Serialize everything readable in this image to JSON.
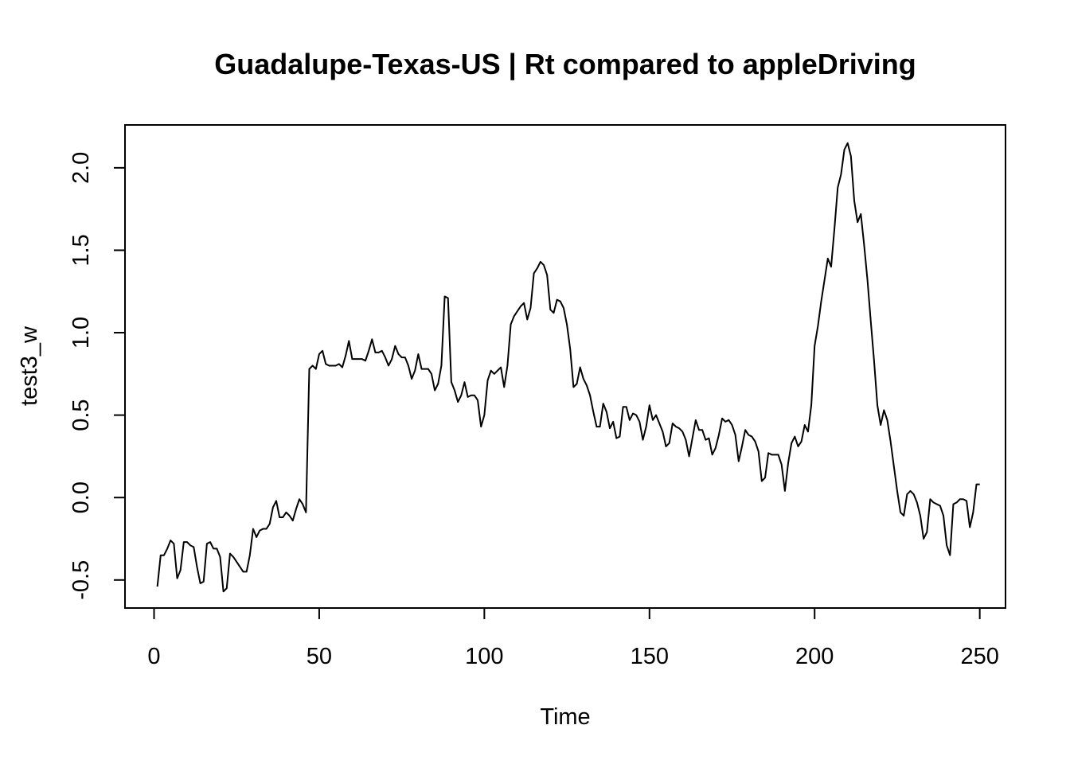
{
  "chart_data": {
    "type": "line",
    "title": "Guadalupe-Texas-US | Rt compared to appleDriving",
    "xlabel": "Time",
    "ylabel": "test3_w",
    "xlim": [
      -8.8,
      257.8
    ],
    "ylim": [
      -0.67,
      2.26
    ],
    "xticks": [
      0,
      50,
      100,
      150,
      200,
      250
    ],
    "xtick_labels": [
      "0",
      "50",
      "100",
      "150",
      "200",
      "250"
    ],
    "yticks": [
      -0.5,
      0.0,
      0.5,
      1.0,
      1.5,
      2.0
    ],
    "ytick_labels": [
      "-0.5",
      "0.0",
      "0.5",
      "1.0",
      "1.5",
      "2.0"
    ],
    "grid": false,
    "series": [
      {
        "name": "test3_w",
        "x_start": 1,
        "x_step": 1,
        "values": [
          -0.54,
          -0.35,
          -0.35,
          -0.31,
          -0.26,
          -0.28,
          -0.49,
          -0.44,
          -0.27,
          -0.27,
          -0.29,
          -0.3,
          -0.42,
          -0.52,
          -0.51,
          -0.28,
          -0.27,
          -0.31,
          -0.31,
          -0.36,
          -0.57,
          -0.55,
          -0.34,
          -0.36,
          -0.39,
          -0.42,
          -0.45,
          -0.45,
          -0.35,
          -0.19,
          -0.24,
          -0.2,
          -0.19,
          -0.19,
          -0.16,
          -0.06,
          -0.02,
          -0.12,
          -0.12,
          -0.09,
          -0.11,
          -0.14,
          -0.07,
          -0.01,
          -0.04,
          -0.09,
          0.78,
          0.8,
          0.78,
          0.87,
          0.89,
          0.81,
          0.8,
          0.8,
          0.8,
          0.81,
          0.79,
          0.86,
          0.95,
          0.84,
          0.84,
          0.84,
          0.84,
          0.83,
          0.89,
          0.96,
          0.88,
          0.88,
          0.89,
          0.85,
          0.8,
          0.84,
          0.92,
          0.87,
          0.85,
          0.85,
          0.8,
          0.72,
          0.77,
          0.87,
          0.78,
          0.78,
          0.78,
          0.75,
          0.65,
          0.69,
          0.8,
          1.22,
          1.21,
          0.7,
          0.65,
          0.58,
          0.62,
          0.7,
          0.61,
          0.62,
          0.62,
          0.59,
          0.43,
          0.5,
          0.71,
          0.77,
          0.75,
          0.77,
          0.79,
          0.67,
          0.8,
          1.05,
          1.1,
          1.13,
          1.16,
          1.18,
          1.08,
          1.15,
          1.36,
          1.39,
          1.43,
          1.41,
          1.35,
          1.14,
          1.12,
          1.2,
          1.19,
          1.15,
          1.05,
          0.9,
          0.67,
          0.69,
          0.79,
          0.72,
          0.68,
          0.62,
          0.52,
          0.43,
          0.43,
          0.57,
          0.52,
          0.42,
          0.46,
          0.36,
          0.37,
          0.55,
          0.55,
          0.47,
          0.51,
          0.5,
          0.46,
          0.35,
          0.43,
          0.56,
          0.47,
          0.5,
          0.45,
          0.4,
          0.31,
          0.33,
          0.45,
          0.43,
          0.42,
          0.4,
          0.35,
          0.25,
          0.36,
          0.47,
          0.41,
          0.41,
          0.35,
          0.36,
          0.26,
          0.3,
          0.38,
          0.48,
          0.46,
          0.47,
          0.44,
          0.38,
          0.22,
          0.31,
          0.41,
          0.38,
          0.37,
          0.34,
          0.28,
          0.1,
          0.12,
          0.27,
          0.26,
          0.26,
          0.26,
          0.2,
          0.04,
          0.21,
          0.33,
          0.37,
          0.31,
          0.34,
          0.44,
          0.4,
          0.56,
          0.92,
          1.04,
          1.19,
          1.32,
          1.45,
          1.4,
          1.63,
          1.88,
          1.96,
          2.11,
          2.15,
          2.07,
          1.8,
          1.67,
          1.72,
          1.53,
          1.32,
          1.07,
          0.83,
          0.56,
          0.44,
          0.53,
          0.47,
          0.34,
          0.19,
          0.04,
          -0.09,
          -0.11,
          0.02,
          0.04,
          0.02,
          -0.03,
          -0.11,
          -0.25,
          -0.21,
          -0.01,
          -0.03,
          -0.04,
          -0.05,
          -0.11,
          -0.29,
          -0.35,
          -0.04,
          -0.03,
          -0.01,
          -0.01,
          -0.02,
          -0.18,
          -0.09,
          0.08,
          0.08
        ]
      }
    ]
  },
  "colors": {
    "line": "#000000",
    "axis": "#000000",
    "background": "#ffffff"
  }
}
